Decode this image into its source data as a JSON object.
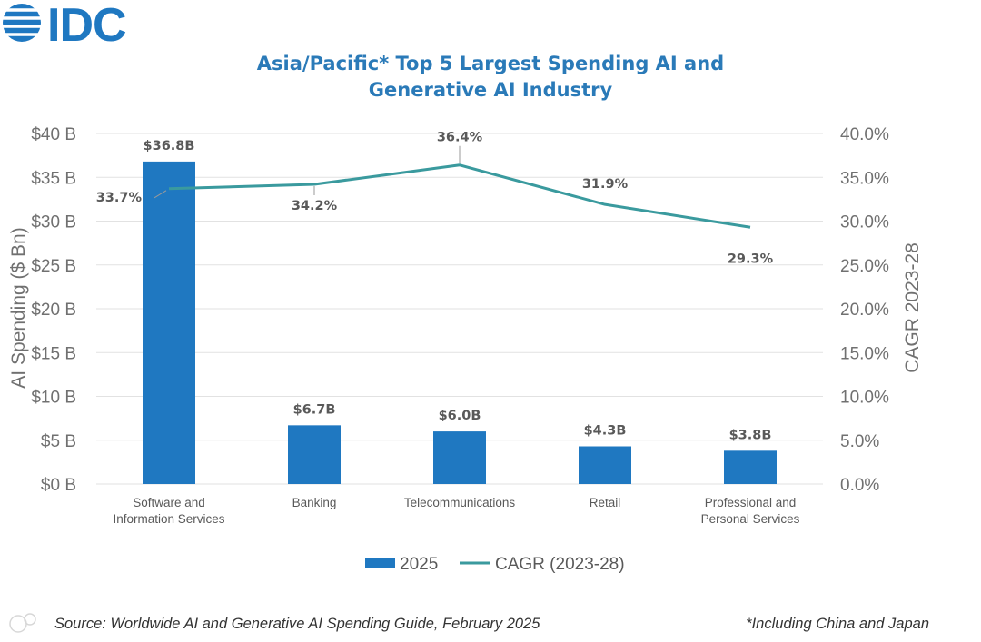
{
  "brand": {
    "logo_text": "IDC",
    "color": "#1f78c1"
  },
  "colors": {
    "bar": "#1f78c1",
    "line": "#3a9a9e",
    "title": "#2a7ab8",
    "grid": "#e2e2e2",
    "text": "#707070"
  },
  "chart_data": {
    "type": "bar",
    "title_lines": [
      "Asia/Pacific* Top 5 Largest Spending AI and",
      "Generative AI Industry"
    ],
    "categories": [
      [
        "Software and",
        "Information Services"
      ],
      [
        "Banking"
      ],
      [
        "Telecommunications"
      ],
      [
        "Retail"
      ],
      [
        "Professional and",
        "Personal Services"
      ]
    ],
    "series": [
      {
        "name": "2025",
        "type": "bar",
        "axis": "left",
        "values": [
          36.8,
          6.7,
          6.0,
          4.3,
          3.8
        ],
        "labels": [
          "$36.8B",
          "$6.7B",
          "$6.0B",
          "$4.3B",
          "$3.8B"
        ]
      },
      {
        "name": "CAGR (2023-28)",
        "type": "line",
        "axis": "right",
        "values": [
          33.7,
          34.2,
          36.4,
          31.9,
          29.3
        ],
        "labels": [
          "33.7%",
          "34.2%",
          "36.4%",
          "31.9%",
          "29.3%"
        ]
      }
    ],
    "y_left": {
      "label": "AI Spending ($ Bn)",
      "range": [
        0,
        40
      ],
      "ticks": [
        "$0 B",
        "$5 B",
        "$10 B",
        "$15 B",
        "$20 B",
        "$25 B",
        "$30 B",
        "$35 B",
        "$40 B"
      ]
    },
    "y_right": {
      "label": "CAGR 2023-28",
      "range": [
        0,
        40
      ],
      "ticks": [
        "0.0%",
        "5.0%",
        "10.0%",
        "15.0%",
        "20.0%",
        "25.0%",
        "30.0%",
        "35.0%",
        "40.0%"
      ]
    },
    "grid": true,
    "legend": {
      "position": "bottom",
      "items": [
        "2025",
        "CAGR (2023-28)"
      ]
    }
  },
  "footer": {
    "source": "Source: Worldwide AI and Generative AI Spending Guide, February 2025",
    "note": "*Including China and Japan"
  }
}
